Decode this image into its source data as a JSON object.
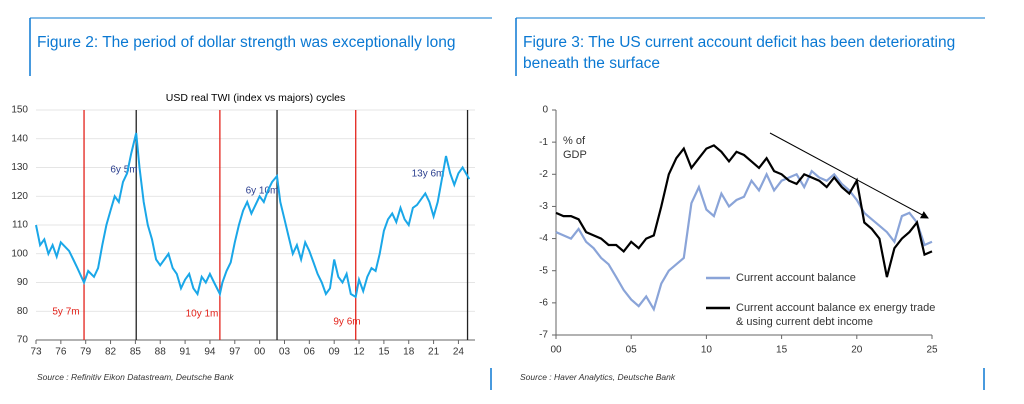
{
  "chart_data": [
    {
      "type": "line",
      "title": "Figure 2: The period of dollar strength was exceptionally long",
      "subtitle": "USD real TWI (index vs majors) cycles",
      "source": "Source : Refinitiv Eikon Datastream, Deutsche Bank",
      "x": [
        1973,
        1973.5,
        1974,
        1974.5,
        1975,
        1975.5,
        1976,
        1977,
        1977.5,
        1978,
        1978.8,
        1979.3,
        1980,
        1980.5,
        1981,
        1981.5,
        1982,
        1982.5,
        1983,
        1983.5,
        1984,
        1984.5,
        1985.1,
        1985.5,
        1986,
        1986.5,
        1987,
        1987.5,
        1988,
        1988.5,
        1989,
        1989.5,
        1990,
        1990.5,
        1991,
        1991.5,
        1992,
        1992.5,
        1993,
        1993.5,
        1994,
        1994.5,
        1995.2,
        1995.5,
        1996,
        1996.5,
        1997,
        1997.5,
        1998,
        1998.5,
        1999,
        1999.5,
        2000,
        2000.5,
        2001,
        2001.5,
        2002.1,
        2002.5,
        2003,
        2003.5,
        2004,
        2004.5,
        2005,
        2005.5,
        2006,
        2006.5,
        2007,
        2007.5,
        2008,
        2008.5,
        2009,
        2009.5,
        2010,
        2010.5,
        2011,
        2011.6,
        2012,
        2012.5,
        2013,
        2013.5,
        2014,
        2014.5,
        2015,
        2015.5,
        2016,
        2016.5,
        2017,
        2017.5,
        2018,
        2018.5,
        2019,
        2019.5,
        2020,
        2020.5,
        2021,
        2021.5,
        2022,
        2022.5,
        2023,
        2023.5,
        2024,
        2024.5,
        2025.3
      ],
      "series": [
        {
          "name": "USD real TWI",
          "color": "#1aa7e8",
          "values": [
            110,
            103,
            105,
            100,
            103,
            99,
            104,
            101,
            98,
            95,
            90,
            94,
            92,
            95,
            103,
            110,
            115,
            120,
            118,
            125,
            128,
            135,
            142,
            130,
            118,
            110,
            105,
            98,
            96,
            98,
            100,
            95,
            93,
            88,
            91,
            93,
            88,
            86,
            92,
            90,
            93,
            90,
            86,
            90,
            94,
            97,
            104,
            110,
            115,
            118,
            114,
            117,
            120,
            118,
            122,
            125,
            127,
            118,
            112,
            106,
            100,
            103,
            98,
            104,
            101,
            97,
            93,
            90,
            86,
            88,
            98,
            92,
            90,
            93,
            86,
            85,
            91,
            87,
            92,
            95,
            94,
            100,
            108,
            112,
            114,
            111,
            116,
            112,
            110,
            116,
            117,
            119,
            121,
            118,
            113,
            118,
            126,
            134,
            128,
            124,
            128,
            130,
            126
          ]
        }
      ],
      "cycle_lines": [
        {
          "x": 1978.8,
          "color": "#e3231b"
        },
        {
          "x": 1985.1,
          "color": "#222222"
        },
        {
          "x": 1995.2,
          "color": "#e3231b"
        },
        {
          "x": 2002.1,
          "color": "#222222"
        },
        {
          "x": 2011.6,
          "color": "#e3231b"
        },
        {
          "x": 2025.1,
          "color": "#222222"
        }
      ],
      "annotations": [
        {
          "text": "5y 7m",
          "color": "#e3231b"
        },
        {
          "text": "6y 5m",
          "color": "#2b3f8f"
        },
        {
          "text": "10y 1m",
          "color": "#e3231b"
        },
        {
          "text": "6y 10m",
          "color": "#2b3f8f"
        },
        {
          "text": "9y 6m",
          "color": "#e3231b"
        },
        {
          "text": "13y 6m",
          "color": "#2b3f8f"
        }
      ],
      "xlim": [
        1973,
        2026
      ],
      "xticks": [
        {
          "value": 1973,
          "label": "73"
        },
        {
          "value": 1976,
          "label": "76"
        },
        {
          "value": 1979,
          "label": "79"
        },
        {
          "value": 1982,
          "label": "82"
        },
        {
          "value": 1985,
          "label": "85"
        },
        {
          "value": 1988,
          "label": "88"
        },
        {
          "value": 1991,
          "label": "91"
        },
        {
          "value": 1994,
          "label": "94"
        },
        {
          "value": 1997,
          "label": "97"
        },
        {
          "value": 2000,
          "label": "00"
        },
        {
          "value": 2003,
          "label": "03"
        },
        {
          "value": 2006,
          "label": "06"
        },
        {
          "value": 2009,
          "label": "09"
        },
        {
          "value": 2012,
          "label": "12"
        },
        {
          "value": 2015,
          "label": "15"
        },
        {
          "value": 2018,
          "label": "18"
        },
        {
          "value": 2021,
          "label": "21"
        },
        {
          "value": 2024,
          "label": "24"
        }
      ],
      "ylim": [
        70,
        150
      ],
      "yticks": [
        70,
        80,
        90,
        100,
        110,
        120,
        130,
        140,
        150
      ],
      "grid": true
    },
    {
      "type": "line",
      "title": "Figure 3: The US current account deficit has been deteriorating beneath the surface",
      "ylabel": "% of GDP",
      "source": "Source : Haver Analytics, Deutsche Bank",
      "x": [
        2000,
        2000.5,
        2001,
        2001.5,
        2002,
        2002.5,
        2003,
        2003.5,
        2004,
        2004.5,
        2005,
        2005.5,
        2006,
        2006.5,
        2007,
        2007.5,
        2008,
        2008.5,
        2009,
        2009.5,
        2010,
        2010.5,
        2011,
        2011.5,
        2012,
        2012.5,
        2013,
        2013.5,
        2014,
        2014.5,
        2015,
        2015.5,
        2016,
        2016.5,
        2017,
        2017.5,
        2018,
        2018.5,
        2019,
        2019.5,
        2020,
        2020.5,
        2021,
        2021.5,
        2022,
        2022.5,
        2023,
        2023.5,
        2024,
        2024.5,
        2025
      ],
      "series": [
        {
          "name": "Current account balance",
          "color": "#8aa4d8",
          "values": [
            -3.8,
            -3.9,
            -4.0,
            -3.7,
            -4.1,
            -4.3,
            -4.6,
            -4.8,
            -5.2,
            -5.6,
            -5.9,
            -6.1,
            -5.8,
            -6.2,
            -5.4,
            -5.0,
            -4.8,
            -4.6,
            -2.9,
            -2.4,
            -3.1,
            -3.3,
            -2.6,
            -3.0,
            -2.8,
            -2.7,
            -2.2,
            -2.5,
            -2.0,
            -2.5,
            -2.2,
            -2.1,
            -2.0,
            -2.4,
            -1.9,
            -2.1,
            -2.2,
            -2.0,
            -2.3,
            -2.5,
            -2.8,
            -3.2,
            -3.4,
            -3.6,
            -3.8,
            -4.1,
            -3.3,
            -3.2,
            -3.5,
            -4.2,
            -4.1
          ]
        },
        {
          "name": "Current account balance ex energy trade & using current debt income",
          "color": "#000000",
          "values": [
            -3.2,
            -3.3,
            -3.3,
            -3.4,
            -3.8,
            -3.9,
            -4.0,
            -4.2,
            -4.2,
            -4.4,
            -4.1,
            -4.3,
            -4.0,
            -3.9,
            -3.0,
            -2.0,
            -1.5,
            -1.2,
            -1.8,
            -1.5,
            -1.2,
            -1.1,
            -1.3,
            -1.6,
            -1.3,
            -1.4,
            -1.6,
            -1.8,
            -1.5,
            -1.9,
            -2.0,
            -2.2,
            -2.3,
            -2.0,
            -2.1,
            -2.2,
            -2.4,
            -2.1,
            -2.4,
            -2.6,
            -2.2,
            -3.5,
            -3.7,
            -4.0,
            -5.2,
            -4.3,
            -4.0,
            -3.8,
            -3.5,
            -4.5,
            -4.4
          ]
        }
      ],
      "xlim": [
        2000,
        2025
      ],
      "xticks": [
        {
          "value": 2000,
          "label": "00"
        },
        {
          "value": 2005,
          "label": "05"
        },
        {
          "value": 2010,
          "label": "10"
        },
        {
          "value": 2015,
          "label": "15"
        },
        {
          "value": 2020,
          "label": "20"
        },
        {
          "value": 2025,
          "label": "25"
        }
      ],
      "ylim": [
        -7,
        0
      ],
      "yticks": [
        -7,
        -6,
        -5,
        -4,
        -3,
        -2,
        -1,
        0
      ],
      "grid": false
    }
  ]
}
